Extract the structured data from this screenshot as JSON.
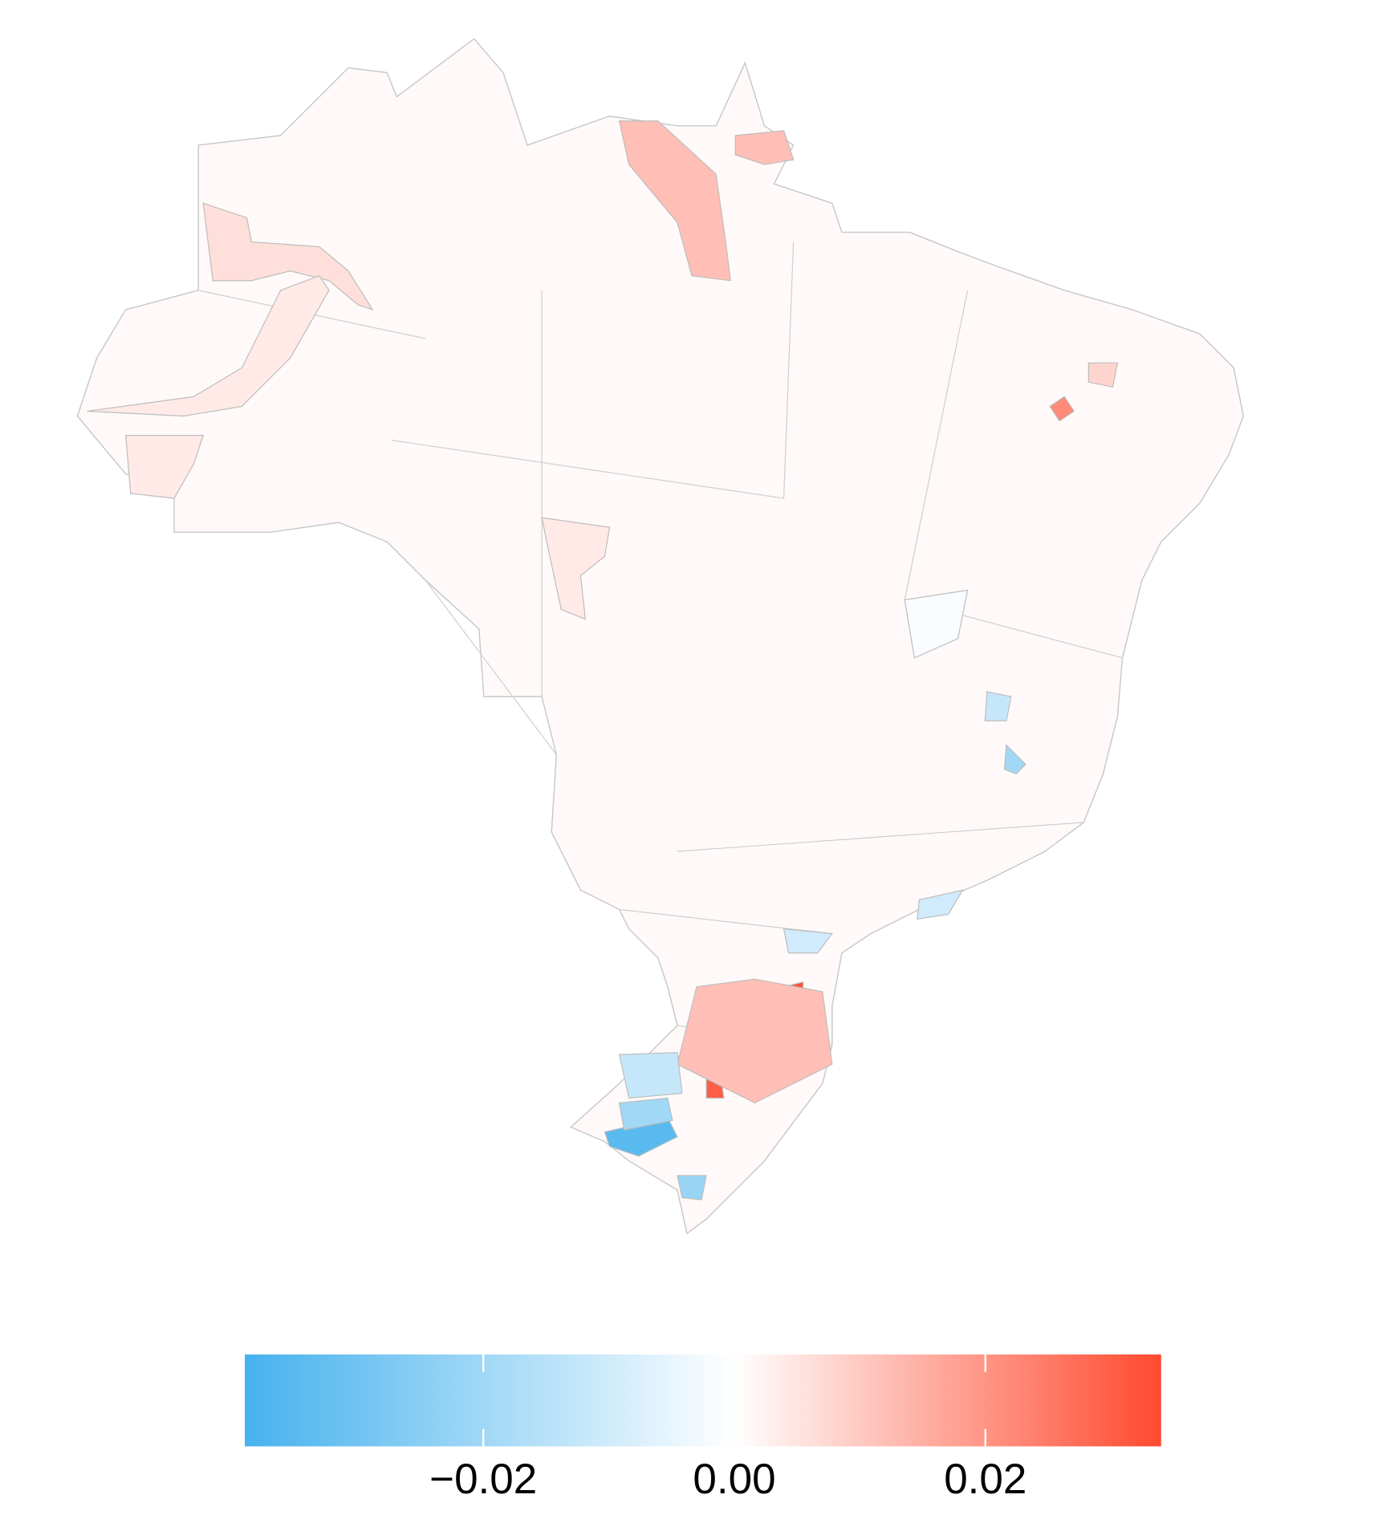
{
  "chart_data": {
    "type": "choropleth",
    "values": [
      0.012,
      0.012,
      0.006,
      0.004,
      0.004,
      0.022,
      0.033,
      0.033,
      0.03,
      0.03,
      0.012,
      -0.035,
      -0.02,
      -0.022,
      -0.012,
      -0.012,
      -0.02,
      -0.01,
      -0.01,
      -0.001,
      0.008,
      0.004
    ],
    "base_value": 0.001,
    "low_color": "#46b2ee",
    "mid_color": "#ffffff",
    "high_color": "#ff4a2f",
    "colorbar": {
      "lim": [
        -0.039,
        0.034
      ],
      "ticks": [
        {
          "value": -0.02,
          "label": "−0.02"
        },
        {
          "value": 0,
          "label": "0.00"
        },
        {
          "value": 0.02,
          "label": "0.02"
        }
      ]
    }
  }
}
